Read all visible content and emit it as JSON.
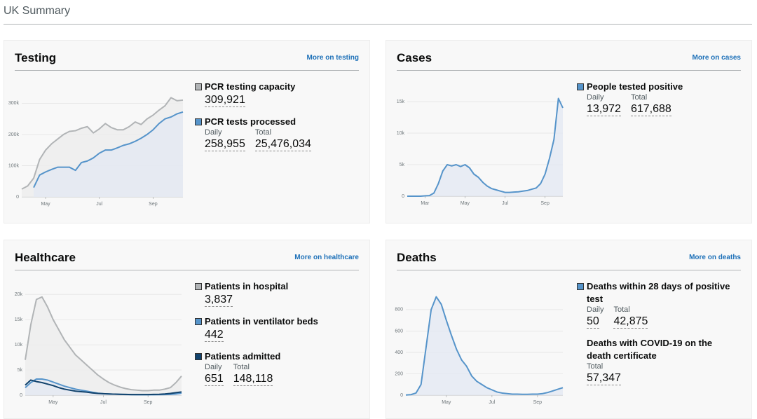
{
  "header": {
    "title": "UK Summary"
  },
  "cards": [
    {
      "title": "Testing",
      "link": "More on testing",
      "metrics": [
        {
          "label": "PCR testing capacity",
          "color": "#b1b4b6",
          "figures": [
            {
              "value": "309,921"
            }
          ]
        },
        {
          "label": "PCR tests processed",
          "color": "#5694ca",
          "figures": [
            {
              "name": "Daily",
              "value": "258,955"
            },
            {
              "name": "Total",
              "value": "25,476,034"
            }
          ]
        }
      ],
      "chart": {
        "type": "line",
        "categories": [
          null,
          null,
          null,
          null,
          "May",
          null,
          null,
          null,
          null,
          null,
          null,
          null,
          null,
          "Jul",
          null,
          null,
          null,
          null,
          null,
          null,
          null,
          null,
          "Sep",
          null,
          null,
          null,
          null,
          null
        ],
        "ylim": [
          0,
          330000
        ],
        "yticks": [
          0,
          {
            "value": 100000,
            "label": "100k"
          },
          {
            "value": 200000,
            "label": "200k"
          },
          {
            "value": 300000,
            "label": "300k"
          }
        ],
        "series": [
          {
            "color": "#b1b4b6",
            "fill": "#ececec",
            "values": [
              25000,
              35000,
              60000,
              120000,
              150000,
              170000,
              185000,
              200000,
              210000,
              212000,
              220000,
              225000,
              205000,
              218000,
              235000,
              222000,
              215000,
              215000,
              225000,
              240000,
              232000,
              250000,
              262000,
              278000,
              292000,
              318000,
              308000,
              310000
            ]
          },
          {
            "color": "#5694ca",
            "fill": "#e3e9f2",
            "values": [
              null,
              null,
              30000,
              70000,
              80000,
              88000,
              95000,
              95000,
              95000,
              85000,
              110000,
              115000,
              125000,
              140000,
              150000,
              150000,
              157000,
              165000,
              170000,
              178000,
              188000,
              200000,
              215000,
              235000,
              250000,
              256000,
              266000,
              272000
            ]
          }
        ]
      }
    },
    {
      "title": "Cases",
      "link": "More on cases",
      "metrics": [
        {
          "label": "People tested positive",
          "color": "#5694ca",
          "figures": [
            {
              "name": "Daily",
              "value": "13,972"
            },
            {
              "name": "Total",
              "value": "617,688"
            }
          ]
        }
      ],
      "chart": {
        "type": "line",
        "categories": [
          null,
          null,
          null,
          null,
          "Mar",
          null,
          null,
          null,
          null,
          null,
          null,
          null,
          null,
          "May",
          null,
          null,
          null,
          null,
          null,
          null,
          null,
          null,
          "Jul",
          null,
          null,
          null,
          null,
          null,
          null,
          null,
          null,
          "Sep",
          null,
          null,
          null,
          null
        ],
        "ylim": [
          0,
          16500
        ],
        "yticks": [
          0,
          {
            "value": 5000,
            "label": "5k"
          },
          {
            "value": 10000,
            "label": "10k"
          },
          {
            "value": 15000,
            "label": "15k"
          }
        ],
        "series": [
          {
            "color": "#5694ca",
            "fill": "#e3e9f2",
            "values": [
              0,
              0,
              0,
              0,
              50,
              100,
              500,
              2000,
              4000,
              5000,
              4800,
              5000,
              4700,
              5000,
              4500,
              3500,
              3000,
              2200,
              1600,
              1200,
              1000,
              800,
              600,
              600,
              650,
              700,
              800,
              900,
              1100,
              1300,
              2000,
              3500,
              6000,
              9000,
              15500,
              14000
            ]
          }
        ]
      }
    },
    {
      "title": "Healthcare",
      "link": "More on healthcare",
      "metrics": [
        {
          "label": "Patients in hospital",
          "color": "#b1b4b6",
          "figures": [
            {
              "value": "3,837"
            }
          ]
        },
        {
          "label": "Patients in ventilator beds",
          "color": "#5694ca",
          "figures": [
            {
              "value": "442"
            }
          ]
        },
        {
          "label": "Patients admitted",
          "color": "#12436d",
          "figures": [
            {
              "name": "Daily",
              "value": "651"
            },
            {
              "name": "Total",
              "value": "148,118"
            }
          ]
        }
      ],
      "chart": {
        "type": "line",
        "categories": [
          null,
          null,
          null,
          null,
          null,
          "May",
          null,
          null,
          null,
          null,
          null,
          null,
          null,
          null,
          "Jul",
          null,
          null,
          null,
          null,
          null,
          null,
          null,
          "Sep",
          null,
          null,
          null,
          null,
          null,
          null
        ],
        "ylim": [
          0,
          21000
        ],
        "yticks": [
          0,
          {
            "value": 5000,
            "label": "5k"
          },
          {
            "value": 10000,
            "label": "10k"
          },
          {
            "value": 15000,
            "label": "15k"
          },
          {
            "value": 20000,
            "label": "20k"
          }
        ],
        "series": [
          {
            "color": "#b1b4b6",
            "fill": "#ececec",
            "values": [
              7000,
              14000,
              19000,
              19500,
              17500,
              15000,
              13000,
              11000,
              9500,
              8000,
              7000,
              6000,
              5000,
              4000,
              3200,
              2500,
              2000,
              1600,
              1300,
              1100,
              1000,
              900,
              900,
              1000,
              1000,
              1200,
              1500,
              2500,
              3800
            ]
          },
          {
            "color": "#5694ca",
            "fill": "#e3e9f2",
            "values": [
              1500,
              2500,
              3200,
              3200,
              3000,
              2600,
              2200,
              1800,
              1500,
              1200,
              1000,
              800,
              600,
              400,
              300,
              250,
              200,
              150,
              120,
              100,
              90,
              80,
              80,
              80,
              100,
              120,
              150,
              250,
              440
            ]
          },
          {
            "color": "#12436d",
            "values": [
              2000,
              3000,
              2700,
              2500,
              2200,
              1900,
              1500,
              1200,
              1000,
              800,
              700,
              600,
              450,
              350,
              300,
              250,
              200,
              180,
              150,
              130,
              120,
              120,
              130,
              150,
              180,
              250,
              350,
              500,
              650
            ]
          }
        ]
      }
    },
    {
      "title": "Deaths",
      "link": "More on deaths",
      "metrics": [
        {
          "label": "Deaths within 28 days of positive test",
          "color": "#5694ca",
          "figures": [
            {
              "name": "Daily",
              "value": "50"
            },
            {
              "name": "Total",
              "value": "42,875"
            }
          ]
        },
        {
          "label": "Deaths with COVID-19 on the death certificate",
          "figures": [
            {
              "name": "Total",
              "value": "57,347"
            }
          ]
        }
      ],
      "chart": {
        "type": "line",
        "categories": [
          null,
          null,
          null,
          null,
          null,
          null,
          null,
          null,
          "May",
          null,
          null,
          null,
          null,
          null,
          null,
          null,
          null,
          "Jul",
          null,
          null,
          null,
          null,
          null,
          null,
          null,
          null,
          "Sep",
          null,
          null,
          null,
          null,
          null
        ],
        "ylim": [
          0,
          950
        ],
        "yticks": [
          0,
          200,
          400,
          600,
          800
        ],
        "series": [
          {
            "color": "#5694ca",
            "fill": "#e3e9f2",
            "values": [
              2,
              5,
              20,
              100,
              450,
              800,
              920,
              850,
              700,
              560,
              430,
              330,
              270,
              180,
              130,
              100,
              70,
              50,
              30,
              20,
              15,
              10,
              10,
              8,
              8,
              10,
              10,
              15,
              25,
              40,
              55,
              70
            ]
          }
        ]
      }
    }
  ]
}
